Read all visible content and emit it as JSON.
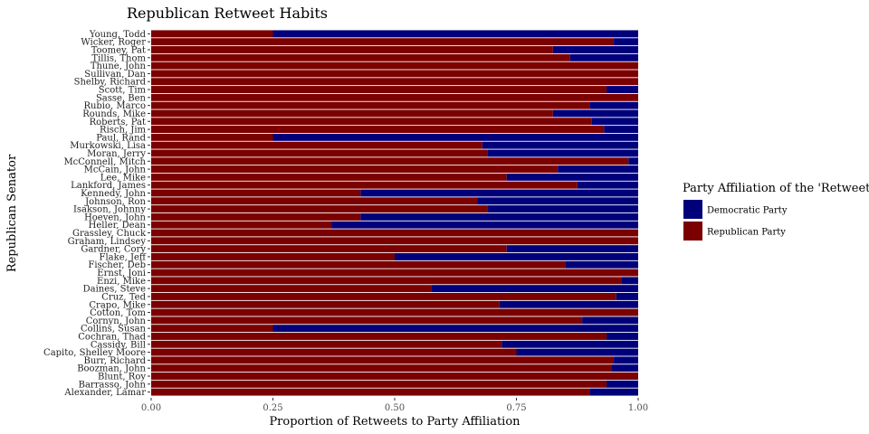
{
  "chart_data": {
    "type": "bar",
    "orientation": "horizontal",
    "stacked": true,
    "title": "Republican Retweet Habits",
    "xlabel": "Proportion of Retweets to Party Affiliation",
    "ylabel": "Republican Senator",
    "xlim": [
      0,
      1
    ],
    "x_ticks": [
      "0.00",
      "0.25",
      "0.50",
      "0.75",
      "1.00"
    ],
    "x_tick_values": [
      0,
      0.25,
      0.5,
      0.75,
      1
    ],
    "grid": false,
    "legend": {
      "title": "Party Affiliation of the 'Retweet'",
      "placement": "right"
    },
    "categories": [
      "Young, Todd",
      "Wicker, Roger",
      "Toomey, Pat",
      "Tillis, Thom",
      "Thune, John",
      "Sullivan, Dan",
      "Shelby, Richard",
      "Scott, Tim",
      "Sasse, Ben",
      "Rubio, Marco",
      "Rounds, Mike",
      "Roberts, Pat",
      "Risch, Jim",
      "Paul, Rand",
      "Murkowski, Lisa",
      "Moran, Jerry",
      "McConnell, Mitch",
      "McCain, John",
      "Lee, Mike",
      "Lankford, James",
      "Kennedy, John",
      "Johnson, Ron",
      "Isakson, Johnny",
      "Hoeven, John",
      "Heller, Dean",
      "Grassley, Chuck",
      "Graham, Lindsey",
      "Gardner, Cory",
      "Flake, Jeff",
      "Fischer, Deb",
      "Ernst, Joni",
      "Enzi, Mike",
      "Daines, Steve",
      "Cruz, Ted",
      "Crapo, Mike",
      "Cotton, Tom",
      "Cornyn, John",
      "Collins, Susan",
      "Cochran, Thad",
      "Cassidy, Bill",
      "Capito, Shelley Moore",
      "Burr, Richard",
      "Boozman, John",
      "Blunt, Roy",
      "Barrasso, John",
      "Alexander, Lamar"
    ],
    "series": [
      {
        "name": "Republican Party",
        "color": "#7b0000",
        "values": [
          0.25,
          0.95,
          0.825,
          0.86,
          1.0,
          1.0,
          1.0,
          0.935,
          1.0,
          0.9,
          0.825,
          0.905,
          0.93,
          0.25,
          0.68,
          0.69,
          0.98,
          0.835,
          0.73,
          0.875,
          0.43,
          0.67,
          0.69,
          0.43,
          0.37,
          1.0,
          1.0,
          0.73,
          0.5,
          0.85,
          1.0,
          0.965,
          0.575,
          0.955,
          0.715,
          1.0,
          0.885,
          0.25,
          0.935,
          0.72,
          0.75,
          0.95,
          0.945,
          1.0,
          0.935,
          0.9
        ]
      },
      {
        "name": "Democratic Party",
        "color": "#00007b",
        "values": [
          0.75,
          0.05,
          0.175,
          0.14,
          0.0,
          0.0,
          0.0,
          0.065,
          0.0,
          0.1,
          0.175,
          0.095,
          0.07,
          0.75,
          0.32,
          0.31,
          0.02,
          0.165,
          0.27,
          0.125,
          0.57,
          0.33,
          0.31,
          0.57,
          0.63,
          0.0,
          0.0,
          0.27,
          0.5,
          0.15,
          0.0,
          0.035,
          0.425,
          0.045,
          0.285,
          0.0,
          0.115,
          0.75,
          0.065,
          0.28,
          0.25,
          0.05,
          0.055,
          0.0,
          0.065,
          0.1
        ]
      }
    ]
  }
}
